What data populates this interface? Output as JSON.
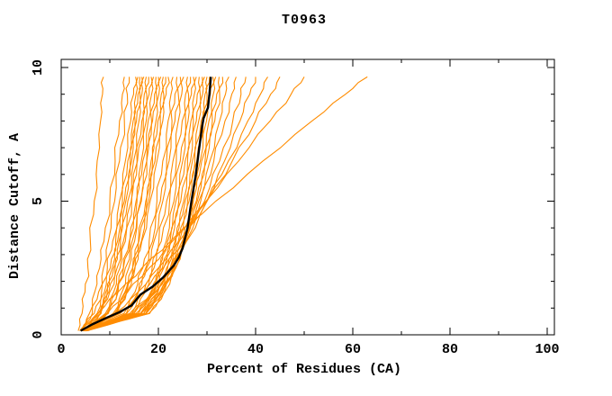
{
  "title": "T0963",
  "chart_data": {
    "type": "line",
    "title": "T0963",
    "xlabel": "Percent of Residues (CA)",
    "ylabel": "Distance Cutoff, A",
    "xlim": [
      0,
      100
    ],
    "ylim": [
      0,
      10
    ],
    "xticks_major": [
      0,
      20,
      40,
      60,
      80,
      100
    ],
    "xticks_minor": [
      10,
      30,
      50,
      70,
      90
    ],
    "yticks_major": [
      0,
      5,
      10
    ],
    "yticks_minor": [
      1,
      2,
      3,
      4,
      6,
      7,
      8,
      9
    ],
    "grid": false,
    "legend": "none",
    "colors": {
      "model_curves": "#ff8c00",
      "highlight_curve": "#000000"
    },
    "y_anchors": [
      0.15,
      0.8,
      1.6,
      2.5,
      3.5,
      5,
      6.5,
      8,
      9,
      9.65
    ],
    "model_curves_x": [
      [
        3.5,
        4.3,
        4.9,
        5.5,
        6.0,
        6.8,
        7.4,
        8.1,
        8.5,
        8.7
      ],
      [
        4.0,
        5.8,
        6.9,
        7.9,
        8.8,
        10.0,
        11.1,
        12.0,
        12.6,
        13.0
      ],
      [
        4.2,
        6.4,
        7.7,
        8.7,
        9.7,
        11.0,
        12.0,
        13.0,
        13.6,
        14.0
      ],
      [
        3.8,
        6.8,
        8.3,
        9.5,
        10.6,
        12.0,
        13.2,
        14.3,
        14.9,
        15.3
      ],
      [
        4.5,
        7.4,
        8.9,
        10.1,
        11.2,
        12.6,
        13.7,
        14.8,
        15.4,
        15.8
      ],
      [
        4.0,
        7.6,
        9.2,
        10.5,
        11.6,
        13.0,
        14.2,
        15.2,
        15.8,
        16.2
      ],
      [
        5.0,
        8.0,
        9.5,
        10.8,
        11.9,
        13.3,
        14.5,
        15.5,
        16.2,
        16.6
      ],
      [
        4.3,
        8.1,
        9.8,
        11.1,
        12.2,
        13.7,
        14.9,
        16.0,
        16.6,
        17.0
      ],
      [
        4.8,
        9.1,
        10.8,
        12.1,
        13.2,
        14.5,
        15.6,
        16.6,
        17.1,
        17.5
      ],
      [
        4.0,
        8.2,
        10.0,
        11.5,
        12.8,
        14.4,
        15.7,
        16.9,
        17.6,
        18.0
      ],
      [
        5.2,
        9.7,
        11.5,
        12.8,
        14.0,
        15.4,
        16.5,
        17.5,
        18.1,
        18.5
      ],
      [
        4.5,
        9.4,
        11.3,
        12.8,
        14.1,
        15.6,
        16.8,
        17.9,
        18.6,
        19.0
      ],
      [
        5.0,
        10.7,
        12.5,
        13.9,
        15.1,
        16.5,
        17.6,
        18.6,
        19.2,
        19.5
      ],
      [
        4.2,
        9.6,
        11.7,
        13.2,
        14.6,
        16.3,
        17.6,
        18.8,
        19.6,
        20.0
      ],
      [
        5.5,
        11.4,
        13.3,
        14.7,
        15.9,
        17.4,
        18.5,
        19.5,
        20.1,
        20.5
      ],
      [
        4.6,
        11.0,
        13.1,
        14.7,
        16.0,
        17.6,
        18.8,
        19.9,
        20.6,
        21.0
      ],
      [
        5.0,
        11.4,
        13.5,
        15.1,
        16.5,
        18.0,
        19.3,
        20.4,
        21.1,
        21.5
      ],
      [
        4.4,
        11.3,
        13.5,
        15.2,
        16.6,
        18.3,
        19.7,
        20.9,
        21.6,
        22.0
      ],
      [
        4.8,
        12.9,
        15.2,
        16.8,
        18.1,
        19.7,
        20.9,
        22.0,
        22.6,
        23.0
      ],
      [
        5.2,
        13.5,
        15.8,
        17.4,
        18.8,
        20.4,
        21.7,
        22.8,
        23.4,
        23.8
      ],
      [
        4.5,
        13.4,
        15.9,
        17.6,
        19.1,
        20.9,
        22.2,
        23.4,
        24.1,
        24.5
      ],
      [
        5.0,
        14.5,
        17.0,
        18.7,
        20.1,
        21.7,
        23.0,
        24.1,
        24.8,
        25.2
      ],
      [
        4.6,
        14.7,
        17.3,
        19.1,
        20.6,
        22.3,
        23.7,
        24.9,
        25.6,
        26.0
      ],
      [
        5.4,
        15.9,
        18.4,
        20.1,
        21.6,
        23.2,
        24.5,
        25.6,
        26.2,
        26.6
      ],
      [
        4.8,
        15.9,
        18.6,
        20.4,
        21.9,
        23.6,
        25.0,
        26.1,
        26.8,
        27.2
      ],
      [
        5.0,
        16.3,
        19.0,
        20.8,
        22.4,
        24.2,
        25.5,
        26.7,
        27.4,
        27.8
      ],
      [
        4.4,
        16.3,
        19.1,
        21.1,
        22.7,
        24.6,
        26.0,
        27.2,
        28.0,
        28.4
      ],
      [
        5.2,
        17.0,
        19.8,
        21.7,
        23.4,
        25.2,
        26.6,
        27.8,
        28.6,
        29.0
      ],
      [
        4.7,
        17.0,
        19.9,
        21.9,
        23.6,
        25.5,
        27.0,
        28.3,
        29.1,
        29.5
      ],
      [
        5.0,
        17.4,
        20.4,
        22.4,
        24.1,
        26.0,
        27.5,
        28.8,
        29.6,
        30.0
      ],
      [
        4.5,
        17.4,
        20.5,
        22.6,
        24.3,
        26.3,
        27.9,
        29.2,
        30.0,
        30.5
      ],
      [
        5.3,
        18.2,
        21.2,
        23.3,
        25.1,
        27.1,
        28.6,
        29.9,
        30.7,
        31.2
      ],
      [
        4.8,
        17.5,
        20.8,
        23.1,
        25.0,
        27.2,
        28.9,
        30.4,
        31.3,
        31.8
      ],
      [
        5.0,
        18.0,
        21.3,
        23.6,
        25.5,
        27.8,
        29.6,
        31.1,
        32.0,
        32.5
      ],
      [
        4.6,
        17.4,
        20.9,
        23.4,
        25.5,
        28.0,
        29.9,
        31.6,
        32.6,
        33.2
      ],
      [
        5.0,
        16.5,
        20.3,
        23.1,
        25.5,
        28.3,
        30.6,
        32.6,
        33.8,
        34.5
      ],
      [
        4.8,
        15.4,
        19.5,
        22.6,
        25.4,
        28.7,
        31.4,
        33.7,
        35.1,
        36.0
      ],
      [
        5.2,
        15.0,
        19.3,
        22.7,
        25.7,
        29.5,
        32.6,
        35.3,
        37.0,
        38.0
      ],
      [
        5.0,
        14.1,
        18.7,
        22.4,
        25.8,
        30.0,
        33.6,
        36.8,
        38.8,
        40.0
      ],
      [
        4.6,
        12.1,
        16.9,
        21.0,
        24.9,
        30.0,
        34.4,
        38.4,
        41.0,
        42.5
      ],
      [
        5.0,
        11.1,
        15.8,
        20.0,
        24.3,
        30.0,
        35.2,
        40.0,
        43.1,
        45.0
      ],
      [
        5.5,
        9.5,
        13.7,
        18.1,
        22.9,
        29.8,
        36.5,
        43.0,
        47.3,
        50.0
      ],
      [
        5.0,
        7.6,
        11.7,
        16.6,
        22.5,
        31.8,
        41.5,
        51.6,
        58.5,
        63.0
      ]
    ],
    "highlight_curve": {
      "points": [
        [
          4,
          0.15
        ],
        [
          6.5,
          0.4
        ],
        [
          9.5,
          0.65
        ],
        [
          12,
          0.85
        ],
        [
          14.5,
          1.1
        ],
        [
          16.3,
          1.5
        ],
        [
          18.8,
          1.8
        ],
        [
          21,
          2.15
        ],
        [
          23.2,
          2.6
        ],
        [
          24.2,
          2.9
        ],
        [
          25,
          3.25
        ],
        [
          26,
          4
        ],
        [
          26.8,
          5
        ],
        [
          27.7,
          6
        ],
        [
          28.4,
          7
        ],
        [
          29,
          7.8
        ],
        [
          29.3,
          8.1
        ],
        [
          30.2,
          8.5
        ],
        [
          30.5,
          9
        ],
        [
          30.8,
          9.65
        ]
      ]
    }
  }
}
